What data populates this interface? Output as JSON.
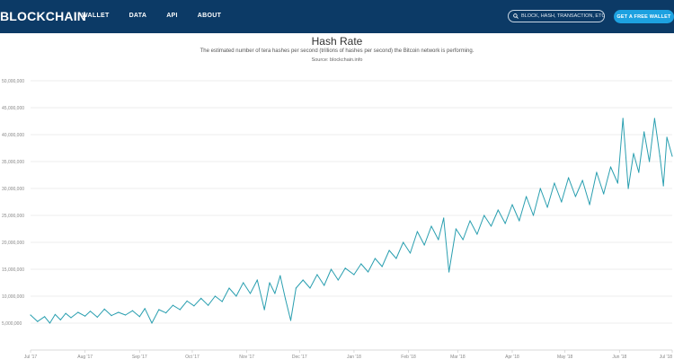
{
  "header": {
    "brand": "BLOCKCHAIN",
    "nav": [
      "WALLET",
      "DATA",
      "API",
      "ABOUT"
    ],
    "search_placeholder": "BLOCK, HASH, TRANSACTION, ETC...",
    "cta_label": "GET A FREE WALLET",
    "bg_color": "#0c3a66",
    "cta_color": "#1da1e0",
    "search_icon": "search-icon"
  },
  "chart_data": {
    "type": "line",
    "title": "Hash Rate",
    "subtitle": "The estimated number of tera hashes per second (trillions of hashes per second) the Bitcoin network is performing.",
    "source": "Source: blockchain.info",
    "line_color": "#2a9fb0",
    "grid": true,
    "ylim": [
      0,
      50000000
    ],
    "yticks": [
      {
        "value": 5000000,
        "label": "5,000,000"
      },
      {
        "value": 10000000,
        "label": "10,000,000"
      },
      {
        "value": 15000000,
        "label": "15,000,000"
      },
      {
        "value": 20000000,
        "label": "20,000,000"
      },
      {
        "value": 25000000,
        "label": "25,000,000"
      },
      {
        "value": 30000000,
        "label": "30,000,000"
      },
      {
        "value": 35000000,
        "label": "35,000,000"
      },
      {
        "value": 40000000,
        "label": "40,000,000"
      },
      {
        "value": 45000000,
        "label": "45,000,000"
      },
      {
        "value": 50000000,
        "label": "50,000,000"
      }
    ],
    "xlim": [
      "2017-07-01",
      "2018-07-01"
    ],
    "xticks": [
      {
        "date": "2017-07-01",
        "label": "Jul '17"
      },
      {
        "date": "2017-08-01",
        "label": "Aug '17"
      },
      {
        "date": "2017-09-01",
        "label": "Sep '17"
      },
      {
        "date": "2017-10-01",
        "label": "Oct '17"
      },
      {
        "date": "2017-11-01",
        "label": "Nov '17"
      },
      {
        "date": "2017-12-01",
        "label": "Dec '17"
      },
      {
        "date": "2018-01-01",
        "label": "Jan '18"
      },
      {
        "date": "2018-02-01",
        "label": "Feb '18"
      },
      {
        "date": "2018-03-01",
        "label": "Mar '18"
      },
      {
        "date": "2018-04-01",
        "label": "Apr '18"
      },
      {
        "date": "2018-05-01",
        "label": "May '18"
      },
      {
        "date": "2018-06-01",
        "label": "Jun '18"
      },
      {
        "date": "2018-07-01",
        "label": "Jul '18"
      }
    ],
    "series": [
      {
        "points": [
          [
            "2017-07-01",
            6500000
          ],
          [
            "2017-07-05",
            5300000
          ],
          [
            "2017-07-09",
            6200000
          ],
          [
            "2017-07-12",
            5000000
          ],
          [
            "2017-07-15",
            6600000
          ],
          [
            "2017-07-18",
            5600000
          ],
          [
            "2017-07-21",
            6800000
          ],
          [
            "2017-07-24",
            6000000
          ],
          [
            "2017-07-28",
            7000000
          ],
          [
            "2017-08-01",
            6300000
          ],
          [
            "2017-08-04",
            7200000
          ],
          [
            "2017-08-08",
            6100000
          ],
          [
            "2017-08-12",
            7600000
          ],
          [
            "2017-08-16",
            6400000
          ],
          [
            "2017-08-20",
            7000000
          ],
          [
            "2017-08-24",
            6500000
          ],
          [
            "2017-08-28",
            7300000
          ],
          [
            "2017-09-01",
            6200000
          ],
          [
            "2017-09-04",
            7700000
          ],
          [
            "2017-09-08",
            5000000
          ],
          [
            "2017-09-12",
            7500000
          ],
          [
            "2017-09-16",
            6900000
          ],
          [
            "2017-09-20",
            8300000
          ],
          [
            "2017-09-24",
            7500000
          ],
          [
            "2017-09-28",
            9100000
          ],
          [
            "2017-10-02",
            8200000
          ],
          [
            "2017-10-06",
            9600000
          ],
          [
            "2017-10-10",
            8300000
          ],
          [
            "2017-10-14",
            10000000
          ],
          [
            "2017-10-18",
            9000000
          ],
          [
            "2017-10-22",
            11500000
          ],
          [
            "2017-10-26",
            10000000
          ],
          [
            "2017-10-30",
            12500000
          ],
          [
            "2017-11-03",
            10500000
          ],
          [
            "2017-11-07",
            13000000
          ],
          [
            "2017-11-11",
            7500000
          ],
          [
            "2017-11-14",
            12500000
          ],
          [
            "2017-11-17",
            10500000
          ],
          [
            "2017-11-20",
            13800000
          ],
          [
            "2017-11-23",
            9500000
          ],
          [
            "2017-11-26",
            5500000
          ],
          [
            "2017-11-29",
            11500000
          ],
          [
            "2017-12-03",
            13000000
          ],
          [
            "2017-12-07",
            11500000
          ],
          [
            "2017-12-11",
            14000000
          ],
          [
            "2017-12-15",
            12000000
          ],
          [
            "2017-12-19",
            15000000
          ],
          [
            "2017-12-23",
            13000000
          ],
          [
            "2017-12-27",
            15200000
          ],
          [
            "2018-01-01",
            14000000
          ],
          [
            "2018-01-05",
            16000000
          ],
          [
            "2018-01-09",
            14500000
          ],
          [
            "2018-01-13",
            17000000
          ],
          [
            "2018-01-17",
            15500000
          ],
          [
            "2018-01-21",
            18500000
          ],
          [
            "2018-01-25",
            17000000
          ],
          [
            "2018-01-29",
            20000000
          ],
          [
            "2018-02-02",
            18000000
          ],
          [
            "2018-02-06",
            22000000
          ],
          [
            "2018-02-10",
            19500000
          ],
          [
            "2018-02-14",
            23000000
          ],
          [
            "2018-02-18",
            20500000
          ],
          [
            "2018-02-21",
            24500000
          ],
          [
            "2018-02-24",
            14500000
          ],
          [
            "2018-02-28",
            22500000
          ],
          [
            "2018-03-04",
            20500000
          ],
          [
            "2018-03-08",
            24000000
          ],
          [
            "2018-03-12",
            21500000
          ],
          [
            "2018-03-16",
            25000000
          ],
          [
            "2018-03-20",
            23000000
          ],
          [
            "2018-03-24",
            26000000
          ],
          [
            "2018-03-28",
            23500000
          ],
          [
            "2018-04-01",
            27000000
          ],
          [
            "2018-04-05",
            24000000
          ],
          [
            "2018-04-09",
            28500000
          ],
          [
            "2018-04-13",
            25000000
          ],
          [
            "2018-04-17",
            30000000
          ],
          [
            "2018-04-21",
            26500000
          ],
          [
            "2018-04-25",
            31000000
          ],
          [
            "2018-04-29",
            27500000
          ],
          [
            "2018-05-03",
            32000000
          ],
          [
            "2018-05-07",
            28500000
          ],
          [
            "2018-05-11",
            31500000
          ],
          [
            "2018-05-15",
            27000000
          ],
          [
            "2018-05-19",
            33000000
          ],
          [
            "2018-05-23",
            29000000
          ],
          [
            "2018-05-27",
            34000000
          ],
          [
            "2018-05-31",
            31000000
          ],
          [
            "2018-06-03",
            43000000
          ],
          [
            "2018-06-06",
            30000000
          ],
          [
            "2018-06-09",
            36500000
          ],
          [
            "2018-06-12",
            33000000
          ],
          [
            "2018-06-15",
            40500000
          ],
          [
            "2018-06-18",
            35000000
          ],
          [
            "2018-06-21",
            43000000
          ],
          [
            "2018-06-24",
            36000000
          ],
          [
            "2018-06-26",
            30500000
          ],
          [
            "2018-06-28",
            39500000
          ],
          [
            "2018-07-01",
            36000000
          ]
        ]
      }
    ]
  }
}
